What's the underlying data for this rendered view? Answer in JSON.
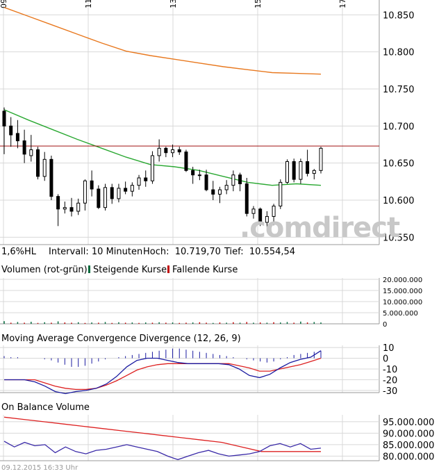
{
  "x_axis": {
    "date_ticks": [
      "09",
      "11",
      "13",
      "15",
      "17"
    ]
  },
  "main_panel": {
    "y_ticks": [
      "10.850",
      "10.800",
      "10.750",
      "10.700",
      "10.650",
      "10.600",
      "10.550"
    ],
    "y_range": [
      10540,
      10870
    ],
    "reference_line": 10673,
    "watermark": ".comdirect",
    "info": {
      "prefix": "1,6%HL",
      "interval": "Intervall: 10 Minuten",
      "high": "Hoch:  10.719,70",
      "low": "Tief:  10.554,54"
    }
  },
  "volume_panel": {
    "title": "Volumen (rot-grün)",
    "legend_up": "Steigende Kurse",
    "legend_down": "Fallende Kurse",
    "y_ticks": [
      "20.000.000",
      "15.000.000",
      "10.000.000",
      "5.000.000",
      "0"
    ]
  },
  "macd_panel": {
    "title": "Moving Average Convergence Divergence (12, 26, 9)",
    "y_ticks": [
      "10",
      "0",
      "-10",
      "-20",
      "-30"
    ]
  },
  "obv_panel": {
    "title": "On Balance Volume",
    "y_ticks": [
      "95.000.000",
      "90.000.000",
      "85.000.000",
      "80.000.000"
    ]
  },
  "footer": {
    "timestamp": "09.12.2015 16:33 Uhr"
  },
  "colors": {
    "ma_long": "#e8781e",
    "ma_short": "#2aa832",
    "ref_line": "#a01010",
    "macd_line": "#1a1aa0",
    "signal_line": "#dd2020",
    "obv_line": "#3a2aa8",
    "grid": "#d8d8d8",
    "up": "#006a3c",
    "down": "#c00000"
  },
  "chart_data": [
    {
      "type": "candlestick",
      "title": "",
      "ylim": [
        10540,
        10870
      ],
      "candles": [
        {
          "o": 10720,
          "h": 10725,
          "l": 10662,
          "c": 10700
        },
        {
          "o": 10700,
          "h": 10712,
          "l": 10672,
          "c": 10688
        },
        {
          "o": 10690,
          "h": 10708,
          "l": 10670,
          "c": 10680
        },
        {
          "o": 10680,
          "h": 10695,
          "l": 10650,
          "c": 10662
        },
        {
          "o": 10660,
          "h": 10688,
          "l": 10652,
          "c": 10668
        },
        {
          "o": 10668,
          "h": 10672,
          "l": 10628,
          "c": 10632
        },
        {
          "o": 10632,
          "h": 10665,
          "l": 10626,
          "c": 10655
        },
        {
          "o": 10655,
          "h": 10660,
          "l": 10600,
          "c": 10605
        },
        {
          "o": 10605,
          "h": 10608,
          "l": 10565,
          "c": 10588
        },
        {
          "o": 10588,
          "h": 10598,
          "l": 10582,
          "c": 10590
        },
        {
          "o": 10590,
          "h": 10603,
          "l": 10578,
          "c": 10585
        },
        {
          "o": 10585,
          "h": 10602,
          "l": 10580,
          "c": 10596
        },
        {
          "o": 10596,
          "h": 10628,
          "l": 10586,
          "c": 10626
        },
        {
          "o": 10626,
          "h": 10640,
          "l": 10605,
          "c": 10615
        },
        {
          "o": 10615,
          "h": 10620,
          "l": 10588,
          "c": 10590
        },
        {
          "o": 10590,
          "h": 10622,
          "l": 10586,
          "c": 10617
        },
        {
          "o": 10617,
          "h": 10622,
          "l": 10595,
          "c": 10602
        },
        {
          "o": 10602,
          "h": 10622,
          "l": 10597,
          "c": 10616
        },
        {
          "o": 10616,
          "h": 10625,
          "l": 10608,
          "c": 10612
        },
        {
          "o": 10612,
          "h": 10624,
          "l": 10605,
          "c": 10620
        },
        {
          "o": 10620,
          "h": 10634,
          "l": 10614,
          "c": 10630
        },
        {
          "o": 10630,
          "h": 10640,
          "l": 10618,
          "c": 10626
        },
        {
          "o": 10626,
          "h": 10666,
          "l": 10622,
          "c": 10660
        },
        {
          "o": 10660,
          "h": 10682,
          "l": 10652,
          "c": 10670
        },
        {
          "o": 10670,
          "h": 10672,
          "l": 10658,
          "c": 10664
        },
        {
          "o": 10664,
          "h": 10675,
          "l": 10658,
          "c": 10668
        },
        {
          "o": 10668,
          "h": 10672,
          "l": 10661,
          "c": 10665
        },
        {
          "o": 10665,
          "h": 10668,
          "l": 10638,
          "c": 10640
        },
        {
          "o": 10640,
          "h": 10645,
          "l": 10622,
          "c": 10634
        },
        {
          "o": 10634,
          "h": 10641,
          "l": 10627,
          "c": 10634
        },
        {
          "o": 10634,
          "h": 10641,
          "l": 10612,
          "c": 10614
        },
        {
          "o": 10614,
          "h": 10626,
          "l": 10600,
          "c": 10608
        },
        {
          "o": 10608,
          "h": 10618,
          "l": 10596,
          "c": 10614
        },
        {
          "o": 10614,
          "h": 10627,
          "l": 10608,
          "c": 10620
        },
        {
          "o": 10620,
          "h": 10640,
          "l": 10612,
          "c": 10634
        },
        {
          "o": 10634,
          "h": 10637,
          "l": 10612,
          "c": 10622
        },
        {
          "o": 10622,
          "h": 10630,
          "l": 10578,
          "c": 10582
        },
        {
          "o": 10582,
          "h": 10592,
          "l": 10575,
          "c": 10588
        },
        {
          "o": 10588,
          "h": 10590,
          "l": 10565,
          "c": 10570
        },
        {
          "o": 10570,
          "h": 10585,
          "l": 10563,
          "c": 10578
        },
        {
          "o": 10578,
          "h": 10595,
          "l": 10566,
          "c": 10592
        },
        {
          "o": 10592,
          "h": 10628,
          "l": 10588,
          "c": 10624
        },
        {
          "o": 10624,
          "h": 10655,
          "l": 10622,
          "c": 10652
        },
        {
          "o": 10652,
          "h": 10656,
          "l": 10624,
          "c": 10628
        },
        {
          "o": 10628,
          "h": 10656,
          "l": 10622,
          "c": 10652
        },
        {
          "o": 10652,
          "h": 10668,
          "l": 10632,
          "c": 10636
        },
        {
          "o": 10636,
          "h": 10642,
          "l": 10628,
          "c": 10640
        },
        {
          "o": 10640,
          "h": 10672,
          "l": 10636,
          "c": 10670
        }
      ],
      "ma_long": [
        10860,
        10848,
        10836,
        10824,
        10812,
        10801,
        10795,
        10790,
        10785,
        10780,
        10776,
        10772,
        10771,
        10770
      ],
      "ma_short": [
        10722,
        10708,
        10695,
        10682,
        10670,
        10658,
        10648,
        10645,
        10640,
        10632,
        10624,
        10620,
        10622,
        10620
      ],
      "reference_line": 10673
    },
    {
      "type": "bar",
      "title": "Volumen (rot-grün)",
      "ylim": [
        0,
        20000000
      ],
      "values": [
        1200000,
        500000,
        800000,
        500000,
        900000,
        400000,
        700000,
        500000,
        1100000,
        600000,
        500000,
        700000,
        400000,
        600000,
        500000,
        800000,
        400000,
        700000,
        500000,
        600000,
        400000,
        600000,
        500000,
        700000,
        500000,
        600000,
        400000,
        500000,
        600000,
        700000,
        500000,
        400000,
        600000,
        500000,
        700000,
        500000,
        800000,
        500000,
        600000,
        500000,
        700000,
        600000,
        800000,
        500000,
        1000000,
        600000,
        800000,
        600000
      ],
      "directions": [
        "up",
        "down",
        "up",
        "down",
        "up",
        "down",
        "up",
        "down",
        "up",
        "down",
        "down",
        "up",
        "down",
        "up",
        "down",
        "up",
        "down",
        "up",
        "down",
        "up",
        "down",
        "up",
        "down",
        "up",
        "down",
        "up",
        "down",
        "down",
        "up",
        "down",
        "down",
        "up",
        "down",
        "up",
        "down",
        "up",
        "down",
        "up",
        "down",
        "up",
        "down",
        "up",
        "up",
        "down",
        "up",
        "down",
        "up",
        "up"
      ]
    },
    {
      "type": "line",
      "title": "Moving Average Convergence Divergence (12, 26, 9)",
      "ylim": [
        -32,
        12
      ],
      "histogram": [
        2,
        1,
        1,
        0,
        0,
        0,
        -1,
        -2,
        -4,
        -6,
        -8,
        -8,
        -7,
        -5,
        -3,
        -1,
        0,
        1,
        2,
        3,
        4,
        5,
        6,
        7,
        8,
        9,
        9,
        8,
        7,
        6,
        5,
        4,
        3,
        2,
        1,
        0,
        -1,
        -2,
        -3,
        -4,
        -3,
        -1,
        1,
        3,
        4,
        5,
        6,
        7
      ],
      "macd": [
        -20,
        -20,
        -20,
        -22,
        -26,
        -31,
        -33,
        -31,
        -30,
        -28,
        -24,
        -17,
        -8,
        -2,
        0,
        0,
        -2,
        -4,
        -5,
        -5,
        -5,
        -5,
        -6,
        -10,
        -16,
        -18,
        -15,
        -9,
        -4,
        -1,
        1,
        7
      ],
      "signal": [
        -20,
        -20,
        -20,
        -20,
        -23,
        -26,
        -28,
        -29,
        -29,
        -28,
        -25,
        -21,
        -16,
        -11,
        -8,
        -6,
        -5,
        -5,
        -5,
        -5,
        -5,
        -5,
        -5,
        -7,
        -9,
        -12,
        -12,
        -10,
        -8,
        -6,
        -3,
        0
      ]
    },
    {
      "type": "line",
      "title": "On Balance Volume",
      "ylim": [
        78000000,
        98000000
      ],
      "obv": [
        86500000,
        84000000,
        86000000,
        84500000,
        85000000,
        81500000,
        84000000,
        82000000,
        81000000,
        82500000,
        83000000,
        84000000,
        85000000,
        84000000,
        83000000,
        82000000,
        80000000,
        78500000,
        80000000,
        81500000,
        82500000,
        81000000,
        80000000,
        80500000,
        81000000,
        82000000,
        84500000,
        85500000,
        84000000,
        85500000,
        83000000,
        83500000
      ],
      "trend": [
        97000000,
        96000000,
        95000000,
        94000000,
        93000000,
        92000000,
        91000000,
        90000000,
        89000000,
        88000000,
        87000000,
        86000000,
        84000000,
        82000000,
        82000000,
        82000000,
        82000000
      ]
    }
  ]
}
